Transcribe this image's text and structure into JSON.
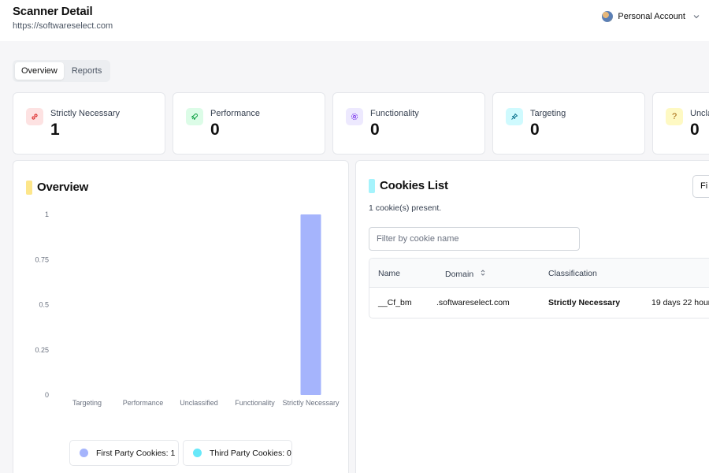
{
  "header": {
    "title": "Scanner Detail",
    "url": "https://softwareselect.com",
    "account_label": "Personal Account"
  },
  "tabs": [
    {
      "label": "Overview",
      "active": true
    },
    {
      "label": "Reports",
      "active": false
    }
  ],
  "stats": [
    {
      "label": "Strictly Necessary",
      "value": "1",
      "icon": "link-icon",
      "color": "#fde2e2"
    },
    {
      "label": "Performance",
      "value": "0",
      "icon": "rocket-icon",
      "color": "#dcfce7"
    },
    {
      "label": "Functionality",
      "value": "0",
      "icon": "gear-icon",
      "color": "#ede9fe"
    },
    {
      "label": "Targeting",
      "value": "0",
      "icon": "pin-icon",
      "color": "#cffafe"
    },
    {
      "label": "Uncla",
      "value": "0",
      "icon": "question-icon",
      "color": "#fef9c3"
    }
  ],
  "overview": {
    "title": "Overview",
    "accent": "#fde68a"
  },
  "chart_data": {
    "type": "bar",
    "categories": [
      "Targeting",
      "Performance",
      "Unclassified",
      "Functionality",
      "Strictly Necessary"
    ],
    "series": [
      {
        "name": "First Party Cookies",
        "values": [
          0,
          0,
          0,
          0,
          1
        ],
        "color": "#a5b4fc"
      },
      {
        "name": "Third Party Cookies",
        "values": [
          0,
          0,
          0,
          0,
          0
        ],
        "color": "#67e8f9"
      }
    ],
    "yticks": [
      "0",
      "0.25",
      "0.5",
      "0.75",
      "1"
    ],
    "ylim": [
      0,
      1
    ],
    "legend": [
      "First Party Cookies: 1",
      "Third Party Cookies: 0"
    ],
    "legend_position": "bottom"
  },
  "cookies": {
    "title": "Cookies List",
    "accent": "#a5f3fc",
    "count_text": "1 cookie(s) present.",
    "filter_placeholder": "Filter by cookie name",
    "filter_button": "Fi",
    "columns": [
      "Name",
      "Domain",
      "Classification"
    ],
    "rows": [
      {
        "name": "__Cf_bm",
        "domain": ".softwareselect.com",
        "classification": "Strictly Necessary",
        "expiry": "19 days 22 hour"
      }
    ]
  }
}
